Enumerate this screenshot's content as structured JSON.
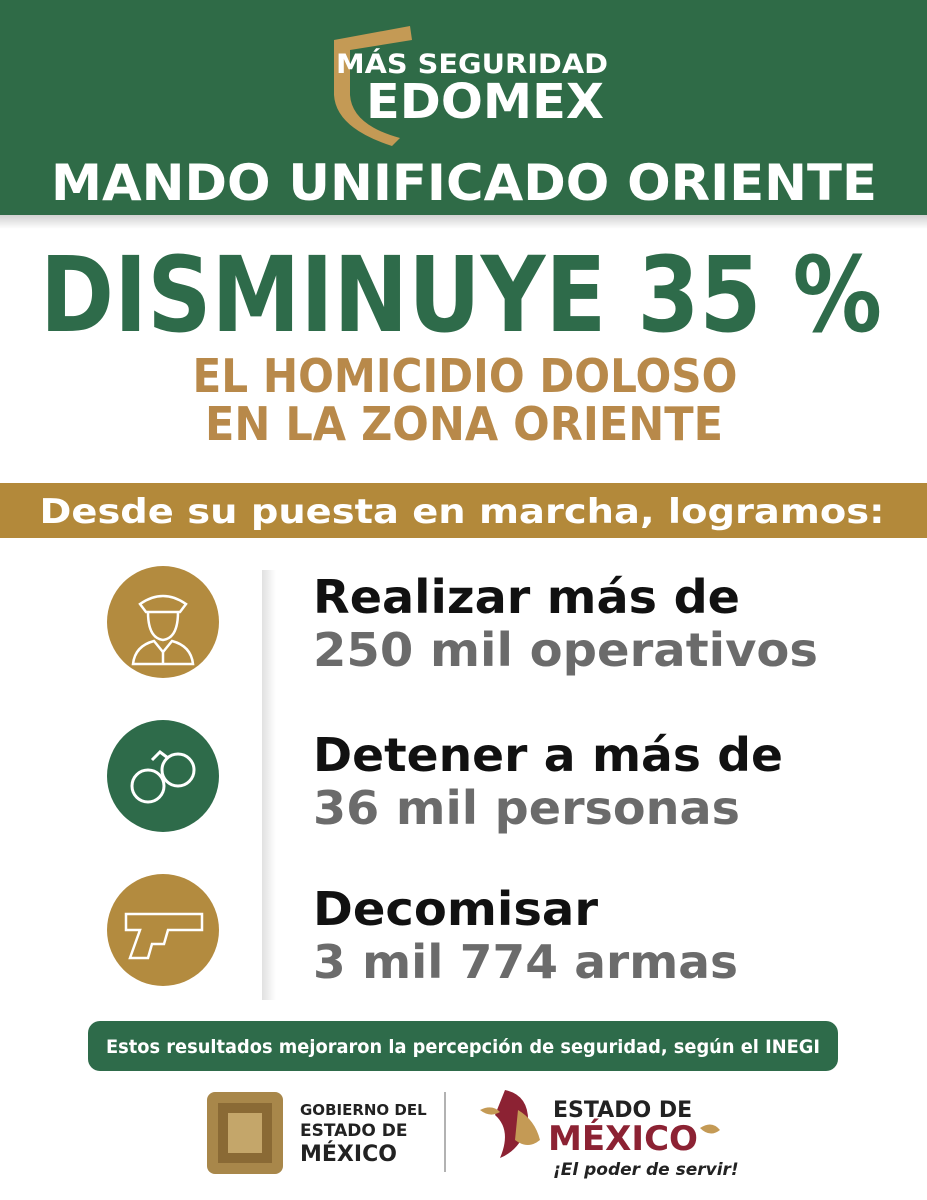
{
  "header": {
    "logo_top": "MÁS SEGURIDAD",
    "logo_bottom": "EDOMEX",
    "title": "MANDO UNIFICADO ORIENTE"
  },
  "headline": "DISMINUYE 35 %",
  "subheadline": [
    "EL HOMICIDIO DOLOSO",
    "EN LA ZONA ORIENTE"
  ],
  "banner": "Desde su puesta en marcha, logramos:",
  "achievements": [
    {
      "action": "Realizar más de",
      "result": "250 mil operativos"
    },
    {
      "action": "Detener a más de",
      "result": "36 mil personas"
    },
    {
      "action": "Decomisar",
      "result": "3 mil 774 armas"
    }
  ],
  "note": "Estos resultados mejoraron la percepción de seguridad, según el INEGI",
  "footer": {
    "government": [
      "GOBIERNO DEL",
      "ESTADO DE",
      "MÉXICO"
    ],
    "brand": [
      "ESTADO DE",
      "MÉXICO"
    ],
    "slogan": "¡El poder de servir!"
  }
}
